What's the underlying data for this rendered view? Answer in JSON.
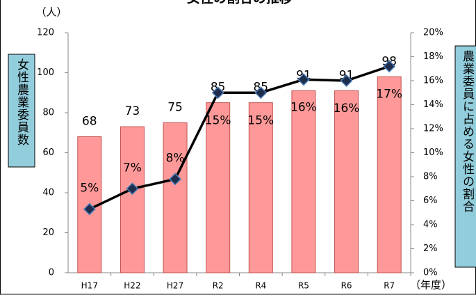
{
  "chart_data": {
    "type": "bar-line",
    "title": "女性の割合の推移",
    "y_unit": "（人）",
    "x_unit": "（年度）",
    "ylabel": "女性農業委員数",
    "y2label": "農業委員に占める女性の割合",
    "categories": [
      "H17",
      "H22",
      "H27",
      "R2",
      "R4",
      "R5",
      "R6",
      "R7"
    ],
    "series": [
      {
        "name": "女性農業委員数",
        "type": "bar",
        "color": "#ff9999",
        "values": [
          68,
          73,
          75,
          85,
          85,
          91,
          91,
          98
        ]
      },
      {
        "name": "女性の割合",
        "type": "line",
        "axis": "y2",
        "color": "#000000",
        "values": [
          5.3,
          7.0,
          7.8,
          15.0,
          15.0,
          16.1,
          16.0,
          17.2
        ],
        "value_labels": [
          "5%",
          "7%",
          "8%",
          "15%",
          "15%",
          "16%",
          "16%",
          "17%"
        ]
      }
    ],
    "ylim": [
      0,
      120
    ],
    "yticks": [
      0,
      20,
      40,
      60,
      80,
      100,
      120
    ],
    "y2lim": [
      0,
      20
    ],
    "y2ticks": [
      {
        "value": 0,
        "label": "0%"
      },
      {
        "value": 2,
        "label": "2%"
      },
      {
        "value": 4,
        "label": "4%"
      },
      {
        "value": 6,
        "label": "6%"
      },
      {
        "value": 8,
        "label": "8%"
      },
      {
        "value": 10,
        "label": "10%"
      },
      {
        "value": 12,
        "label": "12%"
      },
      {
        "value": 14,
        "label": "14%"
      },
      {
        "value": 16,
        "label": "16%"
      },
      {
        "value": 18,
        "label": "18%"
      },
      {
        "value": 20,
        "label": "20%"
      }
    ]
  }
}
